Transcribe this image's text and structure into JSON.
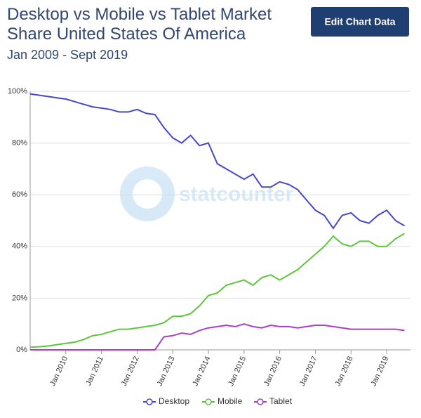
{
  "chart_data": {
    "type": "line",
    "title": "Desktop vs Mobile vs Tablet Market Share United States Of America",
    "subtitle": "Jan 2009 - Sept 2019",
    "button": "Edit Chart Data",
    "watermark": "statcounter",
    "categories": [
      null,
      null,
      null,
      null,
      "Jan 2010",
      null,
      null,
      null,
      "Jan 2011",
      null,
      null,
      null,
      "Jan 2012",
      null,
      null,
      null,
      "Jan 2013",
      null,
      null,
      null,
      "Jan 2014",
      null,
      null,
      null,
      "Jan 2015",
      null,
      null,
      null,
      "Jan 2016",
      null,
      null,
      null,
      "Jan 2017",
      null,
      null,
      null,
      "Jan 2018",
      null,
      null,
      null,
      "Jan 2019",
      null,
      null
    ],
    "series": [
      {
        "name": "Desktop",
        "color": "#4747c9",
        "values": [
          99,
          98.5,
          98,
          97.5,
          97,
          96,
          95,
          94,
          93.5,
          93,
          92,
          92,
          93,
          91.5,
          91,
          86,
          82,
          80,
          83,
          79,
          80,
          72,
          70,
          68,
          66,
          68,
          63,
          63,
          65,
          64,
          62,
          58,
          54,
          52,
          47,
          52,
          53,
          50,
          49,
          52,
          54,
          50,
          48
        ]
      },
      {
        "name": "Mobile",
        "color": "#5cc63b",
        "values": [
          1,
          1.2,
          1.5,
          2,
          2.5,
          3,
          4,
          5.5,
          6,
          7,
          8,
          8,
          8.5,
          9,
          9.5,
          10.5,
          13,
          13,
          14,
          17,
          21,
          22,
          25,
          26,
          27,
          25,
          28,
          29,
          27,
          29,
          31,
          34,
          37,
          40,
          44,
          41,
          40,
          42,
          42,
          40,
          40,
          43,
          45
        ]
      },
      {
        "name": "Tablet",
        "color": "#a93fc9",
        "values": [
          0,
          0,
          0,
          0,
          0,
          0,
          0,
          0,
          0,
          0,
          0,
          0,
          0,
          0,
          0,
          5,
          5.5,
          6.5,
          6,
          7.5,
          8.5,
          9,
          9.5,
          9,
          10,
          9,
          8.5,
          9.5,
          9,
          9,
          8.5,
          9,
          9.5,
          9.5,
          9,
          8.5,
          8,
          8,
          8,
          8,
          8,
          8,
          7.5
        ]
      }
    ],
    "ylim": [
      0,
      100
    ],
    "yticks": [
      {
        "value": 0,
        "label": "0%"
      },
      {
        "value": 20,
        "label": "20%"
      },
      {
        "value": 40,
        "label": "40%"
      },
      {
        "value": 60,
        "label": "60%"
      },
      {
        "value": 80,
        "label": "80%"
      },
      {
        "value": 100,
        "label": "100%"
      }
    ],
    "grid": true,
    "legend": "bottom"
  }
}
